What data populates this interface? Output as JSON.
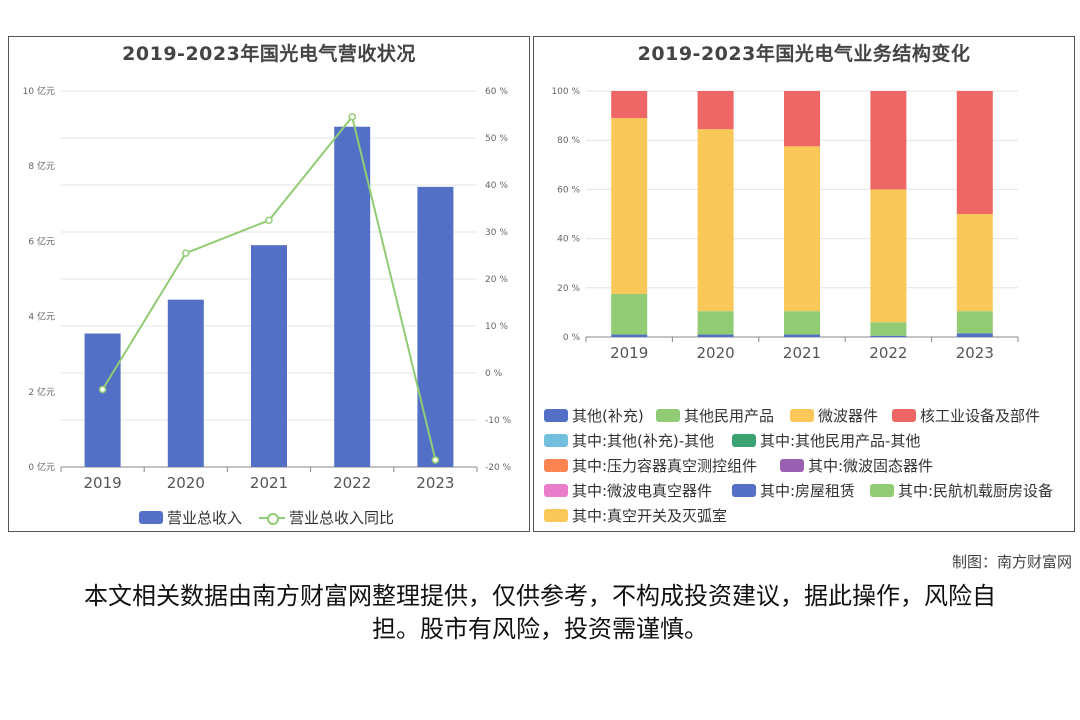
{
  "credit": "制图：南方财富网",
  "disclaimer": "本文相关数据由南方财富网整理提供，仅供参考，不构成投资建议，据此操作，风险自担。股市有风险，投资需谨慎。",
  "colors": {
    "revenue_bar": "#5470c6",
    "growth_line": "#91cc75",
    "seg1": "#5470c6",
    "seg2": "#91cc75",
    "seg3": "#fac858",
    "seg4": "#ee6666",
    "seg5": "#73c0de",
    "seg6": "#3ba272",
    "seg7": "#fc8452",
    "seg8": "#9a60b4",
    "seg9": "#ea7ccc",
    "seg10": "#5470c6",
    "seg11": "#91cc75",
    "seg12": "#fac858"
  },
  "chart_data": [
    {
      "type": "bar",
      "title": "2019-2023年国光电气营收状况",
      "categories": [
        "2019",
        "2020",
        "2021",
        "2022",
        "2023"
      ],
      "series": [
        {
          "name": "营业总收入",
          "type": "bar",
          "axis": "left",
          "values": [
            3.55,
            4.45,
            5.9,
            9.05,
            7.45
          ]
        },
        {
          "name": "营业总收入同比",
          "type": "line",
          "axis": "right",
          "values": [
            -3.5,
            25.5,
            32.5,
            54.5,
            -18.5
          ]
        }
      ],
      "y_left": {
        "min": 0,
        "max": 10,
        "ticks": [
          "0 亿元",
          "2 亿元",
          "4 亿元",
          "6 亿元",
          "8 亿元",
          "10 亿元"
        ]
      },
      "y_right": {
        "min": -20,
        "max": 60,
        "ticks": [
          "-20 %",
          "-10 %",
          "0 %",
          "10 %",
          "20 %",
          "30 %",
          "40 %",
          "50 %",
          "60 %"
        ]
      },
      "legend": "bottom",
      "grid": true
    },
    {
      "type": "bar",
      "stacked": true,
      "title": "2019-2023年国光电气业务结构变化",
      "categories": [
        "2019",
        "2020",
        "2021",
        "2022",
        "2023"
      ],
      "y": {
        "min": 0,
        "max": 100,
        "ticks": [
          "0 %",
          "20 %",
          "40 %",
          "60 %",
          "80 %",
          "100 %"
        ]
      },
      "series": [
        {
          "name": "其他(补充)",
          "values": [
            1,
            1,
            1,
            0.5,
            1.5
          ]
        },
        {
          "name": "其他民用产品",
          "values": [
            16.5,
            9.5,
            9.5,
            5.5,
            9
          ]
        },
        {
          "name": "微波器件",
          "values": [
            71.5,
            74,
            67,
            54,
            39.5
          ]
        },
        {
          "name": "核工业设备及部件",
          "values": [
            11,
            15.5,
            22.5,
            40,
            50
          ]
        },
        {
          "name": "其中:其他(补充)-其他",
          "values": [
            0,
            0,
            0,
            0,
            0
          ]
        },
        {
          "name": "其中:其他民用产品-其他",
          "values": [
            0,
            0,
            0,
            0,
            0
          ]
        },
        {
          "name": "其中:压力容器真空测控组件",
          "values": [
            0,
            0,
            0,
            0,
            0
          ]
        },
        {
          "name": "其中:微波固态器件",
          "values": [
            0,
            0,
            0,
            0,
            0
          ]
        },
        {
          "name": "其中:微波电真空器件",
          "values": [
            0,
            0,
            0,
            0,
            0
          ]
        },
        {
          "name": "其中:房屋租赁",
          "values": [
            0,
            0,
            0,
            0,
            0
          ]
        },
        {
          "name": "其中:民航机载厨房设备",
          "values": [
            0,
            0,
            0,
            0,
            0
          ]
        },
        {
          "name": "其中:真空开关及灭弧室",
          "values": [
            0,
            0,
            0,
            0,
            0
          ]
        }
      ],
      "legend": "bottom",
      "grid": true
    }
  ]
}
